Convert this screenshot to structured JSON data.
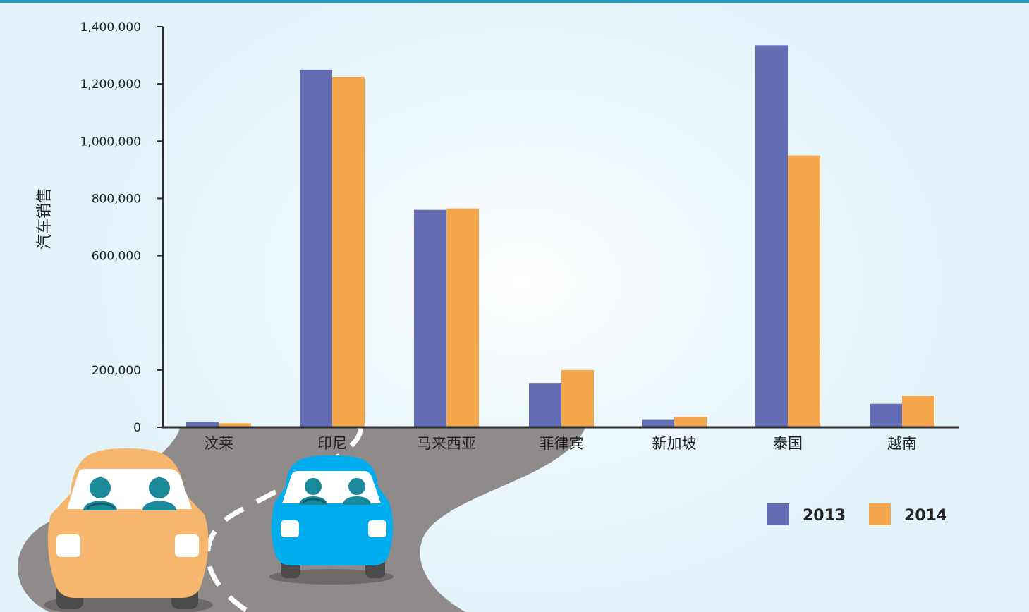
{
  "chart_data": {
    "type": "bar",
    "ylabel": "汽车销售",
    "xlabel": "",
    "ylim": [
      0,
      1400000
    ],
    "yticks": [
      0,
      200000,
      600000,
      800000,
      1000000,
      1200000,
      1400000
    ],
    "ytick_labels": [
      "0",
      "200,000",
      "600,000",
      "800,000",
      "1,000,000",
      "1,200,000",
      "1,400,000"
    ],
    "categories": [
      "汶莱",
      "印尼",
      "马来西亚",
      "菲律宾",
      "新加坡",
      "泰国",
      "越南"
    ],
    "series": [
      {
        "name": "2013",
        "color": "#626db3",
        "values": [
          18000,
          1250000,
          760000,
          155000,
          28000,
          1335000,
          82000
        ]
      },
      {
        "name": "2014",
        "color": "#f5a54a",
        "values": [
          14000,
          1225000,
          765000,
          200000,
          36000,
          950000,
          110000
        ]
      }
    ],
    "legend_position": "bottom-right",
    "grid": false
  },
  "illustration": {
    "road_color": "#8f8b8b",
    "car_orange": "#f7b66d",
    "car_blue": "#00aeef"
  }
}
